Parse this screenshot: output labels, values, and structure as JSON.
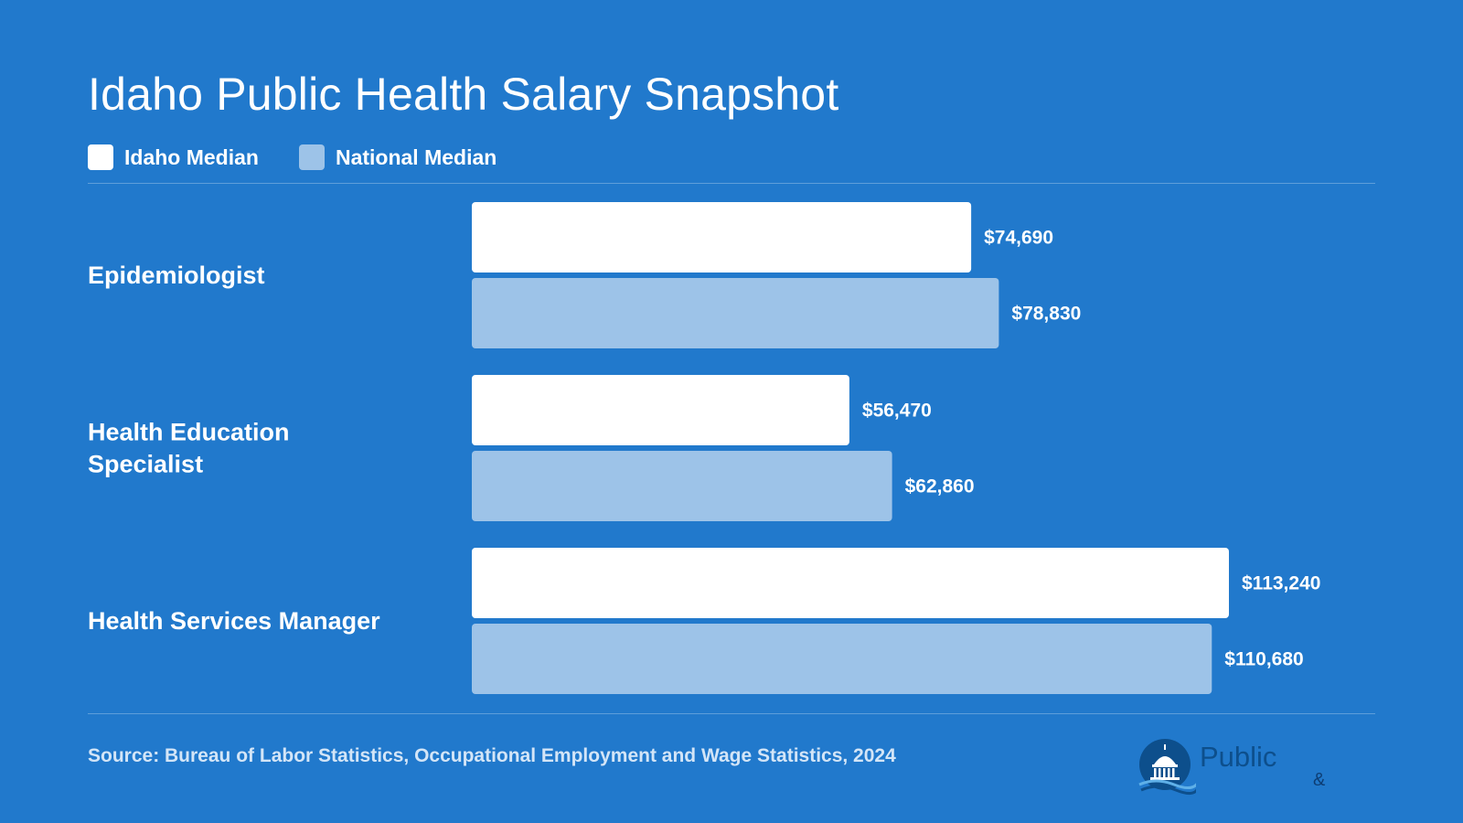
{
  "title": "Idaho Public Health Salary Snapshot",
  "legend": [
    {
      "label": "Idaho Median",
      "color": "#ffffff"
    },
    {
      "label": "National Median",
      "color": "#9dc3e8"
    }
  ],
  "source": "Source: Bureau of Labor Statistics, Occupational Employment and Wage Statistics, 2024",
  "logo": {
    "text": "Public",
    "amp": "&"
  },
  "chart_data": {
    "type": "bar",
    "orientation": "horizontal",
    "categories": [
      "Epidemiologist",
      "Health Education Specialist",
      "Health Services Manager"
    ],
    "series": [
      {
        "name": "Idaho Median",
        "color": "#ffffff",
        "values": [
          74690,
          56470,
          113240
        ],
        "labels": [
          "$74,690",
          "$56,470",
          "$113,240"
        ]
      },
      {
        "name": "National Median",
        "color": "#9dc3e8",
        "values": [
          78830,
          62860,
          110680
        ],
        "labels": [
          "$78,830",
          "$62,860",
          "$110,680"
        ]
      }
    ],
    "xlim": [
      0,
      113240
    ],
    "grid": false,
    "legend_position": "top-left"
  }
}
